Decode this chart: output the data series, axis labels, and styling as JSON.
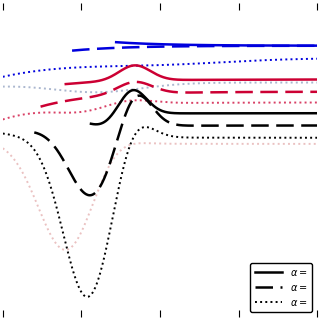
{
  "colors": {
    "blue": "#0000dd",
    "red": "#cc0033",
    "pink": "#dd6688",
    "black": "#000000",
    "gray_blue": "#8899bb",
    "gray_red": "#dd9999"
  },
  "figsize": [
    3.2,
    3.2
  ],
  "dpi": 100,
  "xlim": [
    0,
    1
  ],
  "ylim": [
    -1.05,
    1.0
  ],
  "n_xticks": 5,
  "legend_labels": [
    "$\\alpha=$",
    "$\\alpha=$",
    "$\\alpha=$"
  ],
  "lw_solid": 1.8,
  "lw_dashed": 1.8,
  "lw_dotted": 1.4
}
